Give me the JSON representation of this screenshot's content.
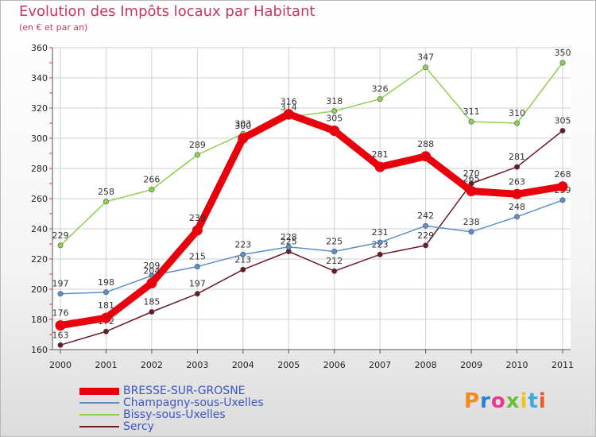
{
  "header": {
    "title": "Evolution des Impôts locaux par Habitant",
    "subtitle": "(en € et par an)"
  },
  "logo_text": "Proxiti",
  "chart_data": {
    "type": "line",
    "title": "Evolution des Impôts locaux par Habitant",
    "subtitle": "(en € et par an)",
    "xlabel": "",
    "ylabel": "",
    "ylim": [
      160,
      360
    ],
    "yticks": [
      160,
      180,
      200,
      220,
      240,
      260,
      280,
      300,
      320,
      340,
      360
    ],
    "x": [
      "2000",
      "2001",
      "2002",
      "2003",
      "2004",
      "2005",
      "2006",
      "2007",
      "2008",
      "2009",
      "2010",
      "2011"
    ],
    "grid": true,
    "legend_position": "bottom-left",
    "series": [
      {
        "name": "Sercy",
        "color": "#6b1a24",
        "values": [
          163,
          172,
          185,
          197,
          213,
          225,
          212,
          223,
          229,
          270,
          281,
          305
        ]
      },
      {
        "name": "Champagny-sous-Uxelles",
        "color": "#5a8fc8",
        "values": [
          197,
          198,
          209,
          215,
          223,
          228,
          225,
          231,
          242,
          238,
          248,
          259
        ]
      },
      {
        "name": "Bissy-sous-Uxelles",
        "color": "#8fd14f",
        "values": [
          229,
          258,
          266,
          289,
          303,
          314,
          318,
          326,
          347,
          311,
          310,
          350
        ]
      },
      {
        "name": "BRESSE-SUR-GROSNE",
        "color": "#e8000d",
        "values": [
          176,
          181,
          204,
          239,
          300,
          316,
          305,
          281,
          288,
          265,
          263,
          268
        ]
      }
    ]
  },
  "legend": {
    "items": [
      {
        "label": "BRESSE-SUR-GROSNE",
        "color": "#e8000d",
        "thickness": 9
      },
      {
        "label": "Champagny-sous-Uxelles",
        "color": "#5a8fc8",
        "thickness": 2
      },
      {
        "label": "Bissy-sous-Uxelles",
        "color": "#8fd14f",
        "thickness": 2
      },
      {
        "label": "Sercy",
        "color": "#6b1a24",
        "thickness": 2
      }
    ]
  }
}
